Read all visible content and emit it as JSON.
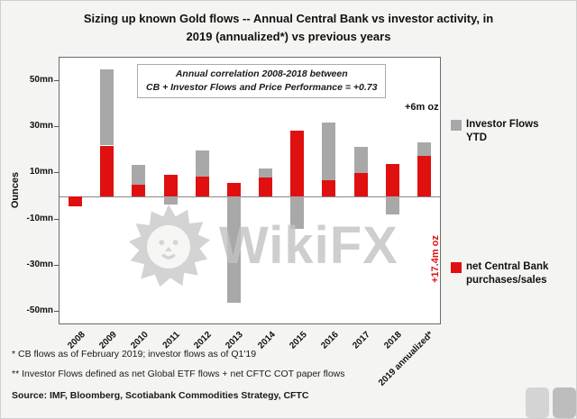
{
  "title": {
    "line1": "Sizing up known Gold flows -- Annual Central Bank vs investor activity, in",
    "line2": "2019 (annualized*) vs previous years"
  },
  "annotation": {
    "line1": "Annual correlation 2008-2018 between",
    "line2": "CB + Investor Flows and Price Performance = +0.73"
  },
  "legend": {
    "investor": {
      "line1": "Investor Flows",
      "line2": "YTD"
    },
    "cb": {
      "line1": "net Central Bank",
      "line2": "purchases/sales"
    }
  },
  "bar_annotations": {
    "gray_label": "+6m oz",
    "red_label": "+17.4m oz"
  },
  "footnotes": {
    "fn1": "* CB flows as of February 2019; investor flows as of Q1'19",
    "fn2": "** Investor Flows defined as net Global ETF flows + net CFTC COT paper flows",
    "source": "Source: IMF, Bloomberg, Scotiabank Commodities Strategy, CFTC"
  },
  "watermark": {
    "text": "WikiFX"
  },
  "chart_data": {
    "type": "bar",
    "stacked": true,
    "title": "Sizing up known Gold flows -- Annual Central Bank vs investor activity, in 2019 (annualized*) vs previous years",
    "categories": [
      "2008",
      "2009",
      "2010",
      "2011",
      "2012",
      "2013",
      "2014",
      "2015",
      "2016",
      "2017",
      "2018",
      "2019 annualized*"
    ],
    "series": [
      {
        "name": "net Central Bank purchases/sales",
        "color": "#e01010",
        "values": [
          -4.5,
          22,
          5,
          9.5,
          8.5,
          6,
          8,
          28.5,
          7,
          10,
          14,
          17.4
        ]
      },
      {
        "name": "Investor Flows YTD",
        "color": "#a8a8a8",
        "values": [
          0,
          33,
          8.5,
          -3.5,
          11.5,
          -46,
          4,
          -14,
          25,
          11.5,
          -8,
          6
        ]
      }
    ],
    "xlabel": "",
    "ylabel": "Ounces",
    "ylim": [
      -55,
      60
    ],
    "yticks": [
      50,
      30,
      10,
      -10,
      -30,
      -50
    ],
    "ytick_labels": [
      "50mn",
      "30mn",
      "10mn",
      "-10mn",
      "-30mn",
      "-50mn"
    ],
    "grid": false,
    "legend_position": "right",
    "annotations": [
      "Annual correlation 2008-2018 between CB + Investor Flows and Price Performance = +0.73",
      "+6m oz (2019 investor flows)",
      "+17.4m oz (2019 central bank purchases)"
    ]
  }
}
